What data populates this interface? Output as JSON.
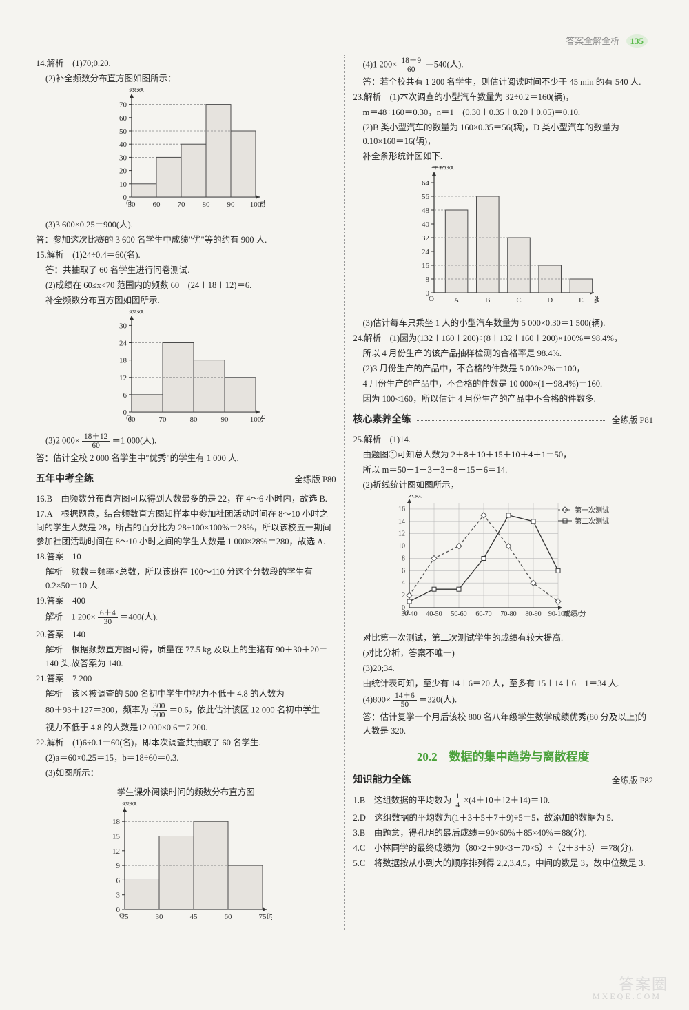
{
  "header": {
    "text": "答案全解全析",
    "page": "135"
  },
  "watermark": {
    "big": "答案圈",
    "small": "MXEQE.COM"
  },
  "left": {
    "q14": {
      "head": "14.解析　(1)70;0.20.",
      "sub": "(2)补全频数分布直方图如图所示：",
      "chart": {
        "type": "bar-histogram",
        "xlabel": "成绩/分",
        "ylabel": "频数",
        "xticks": [
          "50",
          "60",
          "70",
          "80",
          "90",
          "100"
        ],
        "yticks": [
          0,
          10,
          20,
          30,
          40,
          50,
          60,
          70
        ],
        "ylim": [
          0,
          75
        ],
        "bars": [
          {
            "x": "50-60",
            "h": 10
          },
          {
            "x": "60-70",
            "h": 30
          },
          {
            "x": "70-80",
            "h": 40
          },
          {
            "x": "80-90",
            "h": 70
          },
          {
            "x": "90-100",
            "h": 50
          }
        ],
        "bar_fill": "#e6e3de",
        "bar_stroke": "#4a4a4a",
        "axis_color": "#333",
        "dashed_color": "#888",
        "label_fontsize": 11
      },
      "line3": "(3)3 600×0.25＝900(人).",
      "ans": "答：参加这次比赛的 3 600 名学生中成绩\"优\"等的约有 900 人."
    },
    "q15": {
      "head": "15.解析　(1)24÷0.4＝60(名).",
      "l1": "答：共抽取了 60 名学生进行问卷测试.",
      "l2": "(2)成绩在 60≤x<70 范围内的频数 60－(24＋18＋12)＝6.",
      "l3": "补全频数分布直方图如图所示.",
      "chart": {
        "type": "bar-histogram",
        "xlabel": "分数",
        "ylabel": "频数",
        "xticks": [
          "60",
          "70",
          "80",
          "90",
          "100"
        ],
        "yticks": [
          0,
          6,
          12,
          18,
          24,
          30
        ],
        "ylim": [
          0,
          32
        ],
        "bars": [
          {
            "x": "60-70",
            "h": 6
          },
          {
            "x": "70-80",
            "h": 24
          },
          {
            "x": "80-90",
            "h": 18
          },
          {
            "x": "90-100",
            "h": 12
          }
        ],
        "bar_fill": "#e6e3de",
        "bar_stroke": "#4a4a4a",
        "axis_color": "#333",
        "label_fontsize": 11
      },
      "calc_pre": "(3)2 000×",
      "calc_frac": {
        "n": "18＋12",
        "d": "60"
      },
      "calc_post": "＝1 000(人).",
      "ans": "答：估计全校 2 000 名学生中\"优秀\"的学生有 1 000 人."
    },
    "sec5": {
      "title": "五年中考全练",
      "page": "全练版 P80"
    },
    "q16": "16.B　由频数分布直方图可以得到人数最多的是 22，在 4～6 小时内，故选 B.",
    "q17": "17.A　根据题意，结合频数直方图知样本中参加社团活动时间在 8～10 小时之间的学生人数是 28，所占的百分比为 28÷100×100%＝28%，所以该校五一期间参加社团活动时间在 8～10 小时之间的学生人数是 1 000×28%＝280，故选 A.",
    "q18": {
      "head": "18.答案　10",
      "ex": "解析　频数＝频率×总数，所以该班在 100～110 分这个分数段的学生有 0.2×50＝10 人."
    },
    "q19": {
      "head": "19.答案　400",
      "pre": "解析　1 200×",
      "frac": {
        "n": "6＋4",
        "d": "30"
      },
      "post": "＝400(人)."
    },
    "q20": {
      "head": "20.答案　140",
      "ex": "解析　根据频数直方图可得，质量在 77.5 kg 及以上的生猪有 90＋30＋20＝140 头.故答案为 140."
    },
    "q21": {
      "head": "21.答案　7 200",
      "l1": "解析　该区被调查的 500 名初中学生中视力不低于 4.8 的人数为",
      "pre": "80＋93＋127＝300，频率为",
      "frac": {
        "n": "300",
        "d": "500"
      },
      "post": "＝0.6，依此估计该区 12 000 名初中学生",
      "l3": "视力不低于 4.8 的人数是12 000×0.6＝7 200."
    },
    "q22": {
      "head": "22.解析　(1)6÷0.1＝60(名)，即本次调查共抽取了 60 名学生.",
      "l2": "(2)a＝60×0.25＝15，b＝18÷60＝0.3.",
      "l3": "(3)如图所示：",
      "cap": "学生课外阅读时间的频数分布直方图",
      "chart": {
        "type": "bar-histogram",
        "xlabel": "时间/min",
        "ylabel": "频数",
        "xticks": [
          "15",
          "30",
          "45",
          "60",
          "75"
        ],
        "yticks": [
          0,
          3,
          6,
          9,
          12,
          15,
          18
        ],
        "ylim": [
          0,
          20
        ],
        "bars": [
          {
            "x": "15-30",
            "h": 6
          },
          {
            "x": "30-45",
            "h": 15
          },
          {
            "x": "45-60",
            "h": 18
          },
          {
            "x": "60-75",
            "h": 9
          }
        ],
        "bar_fill": "#e6e3de",
        "bar_stroke": "#4a4a4a",
        "axis_color": "#333",
        "label_fontsize": 11
      }
    }
  },
  "right": {
    "q22c": {
      "pre": "(4)1 200×",
      "frac": {
        "n": "18＋9",
        "d": "60"
      },
      "post": "＝540(人).",
      "ans": "答：若全校共有 1 200 名学生，则估计阅读时间不少于 45 min 的有 540 人."
    },
    "q23": {
      "head": "23.解析　(1)本次调查的小型汽车数量为 32÷0.2＝160(辆)，",
      "l1": "m＝48÷160＝0.30，n＝1－(0.30＋0.35＋0.20＋0.05)＝0.10.",
      "l2": "(2)B 类小型汽车的数量为 160×0.35＝56(辆)，D 类小型汽车的数量为 0.10×160＝16(辆)，",
      "l3": "补全条形统计图如下.",
      "chart": {
        "type": "bar",
        "xlabel": "类别",
        "ylabel": "车辆数",
        "xticks": [
          "A",
          "B",
          "C",
          "D",
          "E"
        ],
        "yticks": [
          0,
          8,
          16,
          24,
          32,
          40,
          48,
          56,
          64
        ],
        "ylim": [
          0,
          68
        ],
        "bars": [
          {
            "x": "A",
            "h": 48
          },
          {
            "x": "B",
            "h": 56
          },
          {
            "x": "C",
            "h": 32
          },
          {
            "x": "D",
            "h": 16
          },
          {
            "x": "E",
            "h": 8
          }
        ],
        "bar_fill": "#e6e3de",
        "bar_stroke": "#4a4a4a",
        "axis_color": "#333",
        "label_fontsize": 11
      },
      "l4": "(3)估计每车只乘坐 1 人的小型汽车数量为 5 000×0.30＝1 500(辆)."
    },
    "q24": {
      "head": "24.解析　(1)因为(132＋160＋200)÷(8＋132＋160＋200)×100%＝98.4%，",
      "l1": "所以 4 月份生产的该产品抽样检测的合格率是 98.4%.",
      "l2": "(2)3 月份生产的产品中，不合格的件数是 5 000×2%＝100，",
      "l3": "4 月份生产的产品中，不合格的件数是 10 000×(1－98.4%)＝160.",
      "l4": "因为 100<160，所以估计 4 月份生产的产品中不合格的件数多."
    },
    "secCore": {
      "title": "核心素养全练",
      "page": "全练版 P81"
    },
    "q25": {
      "head": "25.解析　(1)14.",
      "l1": "由题图①可知总人数为 2＋8＋10＋15＋10＋4＋1＝50，",
      "l2": "所以 m＝50－1－3－3－8－15－6＝14.",
      "l3": "(2)折线统计图如图所示，",
      "chart": {
        "type": "line",
        "xlabel": "成绩/分",
        "ylabel": "人数",
        "xticks": [
          "30-40",
          "40-50",
          "50-60",
          "60-70",
          "70-80",
          "80-90",
          "90-100"
        ],
        "yticks": [
          0,
          2,
          4,
          6,
          8,
          10,
          12,
          14,
          16
        ],
        "ylim": [
          0,
          17
        ],
        "series": [
          {
            "name": "第一次测试",
            "marker": "diamond",
            "dash": true,
            "color": "#555",
            "y": [
              2,
              8,
              10,
              15,
              10,
              4,
              1
            ]
          },
          {
            "name": "第二次测试",
            "marker": "square",
            "dash": false,
            "color": "#333",
            "y": [
              1,
              3,
              3,
              8,
              15,
              14,
              6
            ]
          }
        ],
        "grid_color": "#bbb",
        "label_fontsize": 10
      },
      "l4": "对比第一次测试，第二次测试学生的成绩有较大提高.",
      "l5": "(对比分析，答案不唯一)",
      "l6": "(3)20;34.",
      "l7": "由统计表可知，至少有 14＋6＝20 人，至多有 15＋14＋6－1＝34 人.",
      "pre": "(4)800×",
      "frac": {
        "n": "14＋6",
        "d": "50"
      },
      "post": "＝320(人).",
      "ans": "答：估计复学一个月后该校 800 名八年级学生数学成绩优秀(80 分及以上)的人数是 320."
    },
    "chapter": "20.2　数据的集中趋势与离散程度",
    "secKnow": {
      "title": "知识能力全练",
      "page": "全练版 P82"
    },
    "k1": {
      "pre": "1.B　这组数据的平均数为",
      "frac": {
        "n": "1",
        "d": "4"
      },
      "post": "×(4＋10＋12＋14)＝10."
    },
    "k2": "2.D　这组数据的平均数为(1＋3＋5＋7＋9)÷5＝5，故添加的数据为 5.",
    "k3": "3.B　由题意，得孔明的最后成绩＝90×60%＋85×40%＝88(分).",
    "k4": "4.C　小林同学的最终成绩为（80×2＋90×3＋70×5）÷（2＋3＋5）＝78(分).",
    "k5": "5.C　将数据按从小到大的顺序排列得 2,2,3,4,5，中间的数是 3，故中位数是 3."
  }
}
